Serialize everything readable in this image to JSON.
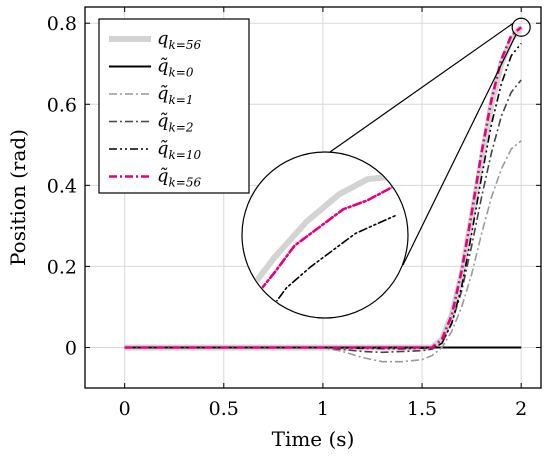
{
  "chart_data": {
    "type": "line",
    "xlabel": "Time (s)",
    "ylabel": "Position (rad)",
    "xlim": [
      -0.2,
      2.1
    ],
    "ylim": [
      -0.1,
      0.84
    ],
    "xticks": [
      0,
      0.5,
      1,
      1.5,
      2
    ],
    "yticks": [
      0,
      0.2,
      0.4,
      0.6,
      0.8
    ],
    "xtick_labels": [
      "0",
      "0.5",
      "1",
      "1.5",
      "2"
    ],
    "ytick_labels": [
      "0",
      "0.2",
      "0.4",
      "0.6",
      "0.8"
    ],
    "grid": true,
    "legend_position": "top-left",
    "series": [
      {
        "name": "q_{k=56}",
        "legend_base": "q",
        "legend_sub": "k=56",
        "color": "#d3d3d3",
        "style": "solid-thick",
        "x": [
          0,
          1.0,
          1.55,
          1.6,
          1.65,
          1.7,
          1.75,
          1.8,
          1.85,
          1.9,
          1.95,
          2.0
        ],
        "y": [
          0,
          0,
          0,
          0.02,
          0.08,
          0.18,
          0.32,
          0.46,
          0.6,
          0.7,
          0.76,
          0.79
        ]
      },
      {
        "name": "q̃_{k=0}",
        "legend_base": "q̃",
        "legend_sub": "k=0",
        "color": "#000000",
        "style": "solid",
        "x": [
          0,
          2.0
        ],
        "y": [
          0,
          0
        ]
      },
      {
        "name": "q̃_{k=1}",
        "legend_base": "q̃",
        "legend_sub": "k=1",
        "color": "#999999",
        "style": "dashdot",
        "x": [
          0,
          1.0,
          1.1,
          1.2,
          1.3,
          1.4,
          1.5,
          1.55,
          1.6,
          1.65,
          1.7,
          1.75,
          1.8,
          1.85,
          1.9,
          1.95,
          2.0
        ],
        "y": [
          0,
          0,
          -0.01,
          -0.025,
          -0.035,
          -0.035,
          -0.03,
          -0.02,
          0.0,
          0.04,
          0.1,
          0.18,
          0.28,
          0.37,
          0.44,
          0.49,
          0.51
        ]
      },
      {
        "name": "q̃_{k=2}",
        "legend_base": "q̃",
        "legend_sub": "k=2",
        "color": "#444444",
        "style": "dashdot",
        "x": [
          0,
          1.0,
          1.1,
          1.2,
          1.3,
          1.4,
          1.5,
          1.55,
          1.6,
          1.65,
          1.7,
          1.75,
          1.8,
          1.85,
          1.9,
          1.95,
          2.0
        ],
        "y": [
          0,
          0,
          -0.005,
          -0.01,
          -0.012,
          -0.01,
          -0.008,
          -0.004,
          0.01,
          0.06,
          0.14,
          0.25,
          0.37,
          0.48,
          0.57,
          0.63,
          0.66
        ]
      },
      {
        "name": "q̃_{k=10}",
        "legend_base": "q̃",
        "legend_sub": "k=10",
        "color": "#000000",
        "style": "dashdotdot",
        "x": [
          0,
          1.0,
          1.2,
          1.4,
          1.55,
          1.6,
          1.65,
          1.7,
          1.75,
          1.8,
          1.85,
          1.9,
          1.95,
          2.0
        ],
        "y": [
          0,
          0,
          -0.002,
          -0.003,
          -0.001,
          0.01,
          0.06,
          0.15,
          0.28,
          0.42,
          0.55,
          0.65,
          0.72,
          0.75
        ]
      },
      {
        "name": "q̃_{k=56}",
        "legend_base": "q̃",
        "legend_sub": "k=56",
        "color": "#e6007e",
        "style": "dashdot-thick",
        "x": [
          0,
          1.0,
          1.2,
          1.4,
          1.55,
          1.6,
          1.65,
          1.7,
          1.75,
          1.8,
          1.85,
          1.9,
          1.95,
          2.0
        ],
        "y": [
          0,
          0,
          0,
          0,
          0,
          0.02,
          0.08,
          0.19,
          0.33,
          0.48,
          0.61,
          0.71,
          0.77,
          0.79
        ]
      }
    ]
  }
}
